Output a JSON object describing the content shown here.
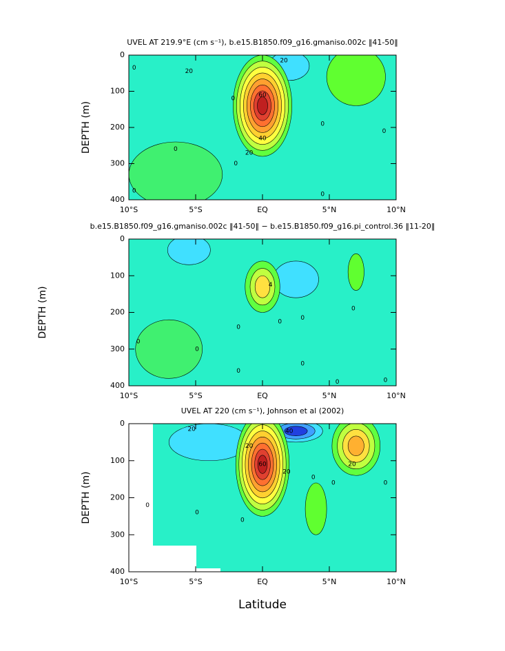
{
  "chart_data": [
    {
      "type": "contour",
      "title": "UVEL AT 219.9°E (cm s⁻¹), b.e15.B1850.f09_g16.gmaniso.002c ‖41-50‖",
      "ylabel": "DEPTH (m)",
      "xlim": [
        -10,
        10
      ],
      "ylim": [
        400,
        0
      ],
      "xticks": [
        {
          "value": -10,
          "label": "10°S"
        },
        {
          "value": -5,
          "label": "5°S"
        },
        {
          "value": 0,
          "label": "EQ"
        },
        {
          "value": 5,
          "label": "5°N"
        },
        {
          "value": 10,
          "label": "10°N"
        }
      ],
      "yticks": [
        0,
        100,
        200,
        300,
        400
      ],
      "background": "#28f0c8",
      "cores": [
        {
          "x": -6.5,
          "y": 330,
          "dx": 3.5,
          "dy": 90,
          "value": 5,
          "colors": [
            "#40f070"
          ]
        },
        {
          "x": 2,
          "y": 30,
          "dx": 1.5,
          "dy": 40,
          "value": -20,
          "colors": [
            "#40e0ff"
          ]
        },
        {
          "x": 7,
          "y": 60,
          "dx": 2.2,
          "dy": 80,
          "value": 5,
          "colors": [
            "#60ff30"
          ]
        },
        {
          "x": 0,
          "y": 140,
          "dx": 2.2,
          "dy": 140,
          "value": 90,
          "colors": [
            "#60ff40",
            "#c0ff40",
            "#ffff40",
            "#ffd030",
            "#ffa030",
            "#ff7030",
            "#e04030",
            "#c02020"
          ]
        }
      ],
      "contour_labels": [
        {
          "x": -5.5,
          "y": 45,
          "value": 20
        },
        {
          "x": 1.6,
          "y": 15,
          "value": 20
        },
        {
          "x": -2.2,
          "y": 120,
          "value": 0
        },
        {
          "x": 0,
          "y": 110,
          "value": 60
        },
        {
          "x": 0,
          "y": 230,
          "value": 40
        },
        {
          "x": -1,
          "y": 270,
          "value": 20
        },
        {
          "x": -2,
          "y": 300,
          "value": 0
        },
        {
          "x": -6.5,
          "y": 260,
          "value": 0
        },
        {
          "x": 4.5,
          "y": 190,
          "value": 0
        },
        {
          "x": 4.5,
          "y": 385,
          "value": 0
        },
        {
          "x": 9.1,
          "y": 210,
          "value": 0
        },
        {
          "x": -9.6,
          "y": 375,
          "value": 0
        },
        {
          "x": -9.6,
          "y": 35,
          "value": 0
        }
      ]
    },
    {
      "type": "contour",
      "title": "b.e15.B1850.f09_g16.gmaniso.002c ‖41-50‖ − b.e15.B1850.f09_g16.pi_control.36 ‖11-20‖",
      "ylabel": "DEPTH (m)",
      "xlim": [
        -10,
        10
      ],
      "ylim": [
        400,
        0
      ],
      "xticks": [
        {
          "value": -10,
          "label": "10°S"
        },
        {
          "value": -5,
          "label": "5°S"
        },
        {
          "value": 0,
          "label": "EQ"
        },
        {
          "value": 5,
          "label": "5°N"
        },
        {
          "value": 10,
          "label": "10°N"
        }
      ],
      "yticks": [
        0,
        100,
        200,
        300,
        400
      ],
      "background": "#28f0c8",
      "cores": [
        {
          "x": -7,
          "y": 300,
          "dx": 2.5,
          "dy": 80,
          "value": 2,
          "colors": [
            "#40f070"
          ]
        },
        {
          "x": -5.5,
          "y": 30,
          "dx": 1.6,
          "dy": 40,
          "value": -2,
          "colors": [
            "#40e0ff"
          ]
        },
        {
          "x": 2.5,
          "y": 110,
          "dx": 1.7,
          "dy": 50,
          "value": -4,
          "colors": [
            "#40e0ff"
          ]
        },
        {
          "x": 7,
          "y": 90,
          "dx": 0.6,
          "dy": 50,
          "value": 3,
          "colors": [
            "#60ff30"
          ]
        },
        {
          "x": 0,
          "y": 130,
          "dx": 1.3,
          "dy": 70,
          "value": 6,
          "colors": [
            "#60ff40",
            "#c0ff40",
            "#ffe040"
          ]
        }
      ],
      "contour_labels": [
        {
          "x": 0.6,
          "y": 125,
          "value": 4
        },
        {
          "x": -9.3,
          "y": 280,
          "value": 0
        },
        {
          "x": -4.9,
          "y": 300,
          "value": 0
        },
        {
          "x": -1.8,
          "y": 240,
          "value": 0
        },
        {
          "x": -1.8,
          "y": 360,
          "value": 0
        },
        {
          "x": 1.3,
          "y": 225,
          "value": 0
        },
        {
          "x": 3,
          "y": 215,
          "value": 0
        },
        {
          "x": 3,
          "y": 340,
          "value": 0
        },
        {
          "x": 6.8,
          "y": 190,
          "value": 0
        },
        {
          "x": 5.6,
          "y": 390,
          "value": 0
        },
        {
          "x": 9.2,
          "y": 385,
          "value": 0
        }
      ]
    },
    {
      "type": "contour",
      "title": "UVEL AT 220 (cm s⁻¹), Johnson et al (2002)",
      "ylabel": "DEPTH (m)",
      "xlabel": "Latitude",
      "xlim": [
        -10,
        10
      ],
      "ylim": [
        400,
        0
      ],
      "xticks": [
        {
          "value": -10,
          "label": "10°S"
        },
        {
          "value": -5,
          "label": "5°S"
        },
        {
          "value": 0,
          "label": "EQ"
        },
        {
          "value": 5,
          "label": "5°N"
        },
        {
          "value": 10,
          "label": "10°N"
        }
      ],
      "yticks": [
        0,
        100,
        200,
        300,
        400
      ],
      "background": "#28f0c8",
      "cores": [
        {
          "x": -4,
          "y": 50,
          "dx": 3,
          "dy": 50,
          "value": -20,
          "colors": [
            "#40e0ff"
          ]
        },
        {
          "x": 2.5,
          "y": 20,
          "dx": 2,
          "dy": 30,
          "value": -40,
          "colors": [
            "#40e0ff",
            "#40a0ff",
            "#2040e0"
          ]
        },
        {
          "x": 4,
          "y": 230,
          "dx": 0.8,
          "dy": 70,
          "value": 10,
          "colors": [
            "#60ff30"
          ]
        },
        {
          "x": 7,
          "y": 60,
          "dx": 1.8,
          "dy": 80,
          "value": 40,
          "colors": [
            "#60ff40",
            "#c0ff40",
            "#ffe040",
            "#ffb030"
          ]
        },
        {
          "x": 0,
          "y": 110,
          "dx": 2,
          "dy": 140,
          "value": 80,
          "colors": [
            "#60ff40",
            "#c0ff40",
            "#ffff40",
            "#ffd030",
            "#ffa030",
            "#ff7030",
            "#e04030",
            "#c02020"
          ]
        }
      ],
      "contour_labels": [
        {
          "x": -5.3,
          "y": 15,
          "value": 20
        },
        {
          "x": 2,
          "y": 20,
          "value": 40
        },
        {
          "x": -1,
          "y": 60,
          "value": 20
        },
        {
          "x": 1.8,
          "y": 130,
          "value": 20
        },
        {
          "x": 0,
          "y": 110,
          "value": 60
        },
        {
          "x": 6.7,
          "y": 110,
          "value": 20
        },
        {
          "x": 3.8,
          "y": 145,
          "value": 0
        },
        {
          "x": -1.5,
          "y": 260,
          "value": 0
        },
        {
          "x": 5.3,
          "y": 160,
          "value": 0
        },
        {
          "x": 9.2,
          "y": 160,
          "value": 0
        },
        {
          "x": -4.9,
          "y": 240,
          "value": 0
        },
        {
          "x": -8.6,
          "y": 220,
          "value": 0
        }
      ]
    }
  ]
}
